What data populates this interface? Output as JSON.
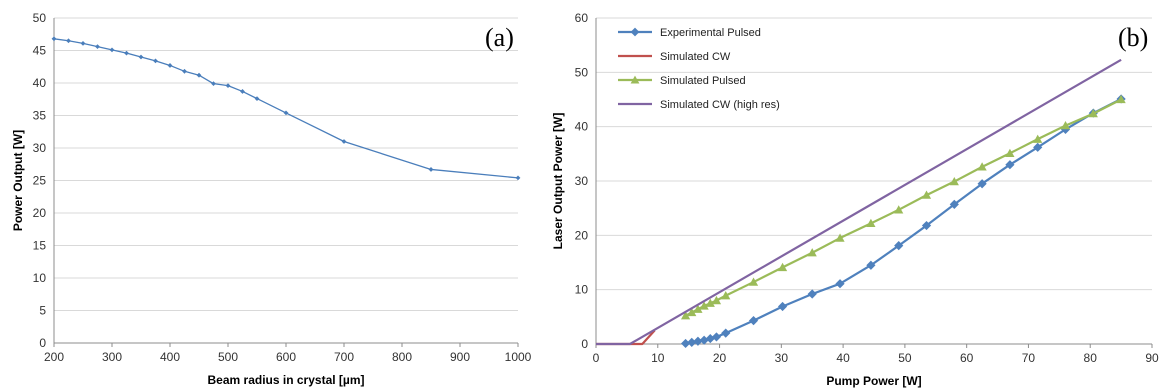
{
  "chart_data": [
    {
      "type": "line",
      "panel_label": "(a)",
      "xlabel": "Beam radius in crystal [µm]",
      "ylabel": "Power Output [W]",
      "xlim": [
        200,
        1000
      ],
      "ylim": [
        0,
        50
      ],
      "xticks": [
        "200",
        "300",
        "400",
        "500",
        "600",
        "700",
        "800",
        "900",
        "1000"
      ],
      "yticks": [
        "0",
        "5",
        "10",
        "15",
        "20",
        "25",
        "30",
        "35",
        "40",
        "45",
        "50"
      ],
      "grid": "horizontal",
      "color": "#4a7ebb",
      "series": [
        {
          "x": [
            200,
            225,
            250,
            275,
            300,
            325,
            350,
            375,
            400,
            425,
            450,
            475,
            500,
            525,
            550,
            600,
            700,
            850,
            1000
          ],
          "y": [
            46.8,
            46.5,
            46.1,
            45.6,
            45.1,
            44.6,
            44.0,
            43.4,
            42.7,
            41.8,
            41.2,
            39.9,
            39.6,
            38.7,
            37.6,
            35.4,
            31.0,
            26.7,
            25.4
          ]
        }
      ]
    },
    {
      "type": "line",
      "panel_label": "(b)",
      "xlabel": "Pump Power [W]",
      "ylabel": "Laser Output Power [W]",
      "xlim": [
        0,
        90
      ],
      "ylim": [
        0,
        60
      ],
      "xticks": [
        "0",
        "10",
        "20",
        "30",
        "40",
        "50",
        "60",
        "70",
        "80",
        "90"
      ],
      "yticks": [
        "0",
        "10",
        "20",
        "30",
        "40",
        "50",
        "60"
      ],
      "grid": "horizontal",
      "legend": "top-left",
      "series": [
        {
          "name": "Experimental Pulsed",
          "color": "#4f81bd",
          "marker": "diamond",
          "x": [
            14.5,
            15.5,
            16.5,
            17.5,
            18.5,
            19.5,
            21,
            25.5,
            30.2,
            35,
            39.5,
            44.5,
            49,
            53.5,
            58,
            62.5,
            67,
            71.5,
            76,
            80.5,
            85
          ],
          "y": [
            0.1,
            0.3,
            0.5,
            0.7,
            1.0,
            1.3,
            2.0,
            4.3,
            6.9,
            9.2,
            11.1,
            14.5,
            18.1,
            21.8,
            25.7,
            29.5,
            33.0,
            36.2,
            39.5,
            42.5,
            45.1
          ]
        },
        {
          "name": "Simulated CW",
          "color": "#c0504d",
          "marker": "none",
          "x": [
            0,
            7.5,
            9.5
          ],
          "y": [
            0,
            0,
            2.5
          ]
        },
        {
          "name": "Simulated Pulsed",
          "color": "#9bbb59",
          "marker": "triangle",
          "x": [
            14.5,
            15.5,
            16.5,
            17.5,
            18.5,
            19.5,
            21,
            25.5,
            30.2,
            35,
            39.5,
            44.5,
            49,
            53.5,
            58,
            62.5,
            67,
            71.5,
            76,
            80.5,
            85
          ],
          "y": [
            5.2,
            5.8,
            6.4,
            7.0,
            7.5,
            8.0,
            8.9,
            11.4,
            14.1,
            16.8,
            19.5,
            22.2,
            24.7,
            27.4,
            29.9,
            32.6,
            35.1,
            37.7,
            40.2,
            42.4,
            45.0
          ]
        },
        {
          "name": "Simulated CW (high res)",
          "color": "#8064a2",
          "marker": "none",
          "x": [
            0,
            5.5,
            85
          ],
          "y": [
            0,
            0,
            52.3
          ]
        }
      ]
    }
  ]
}
